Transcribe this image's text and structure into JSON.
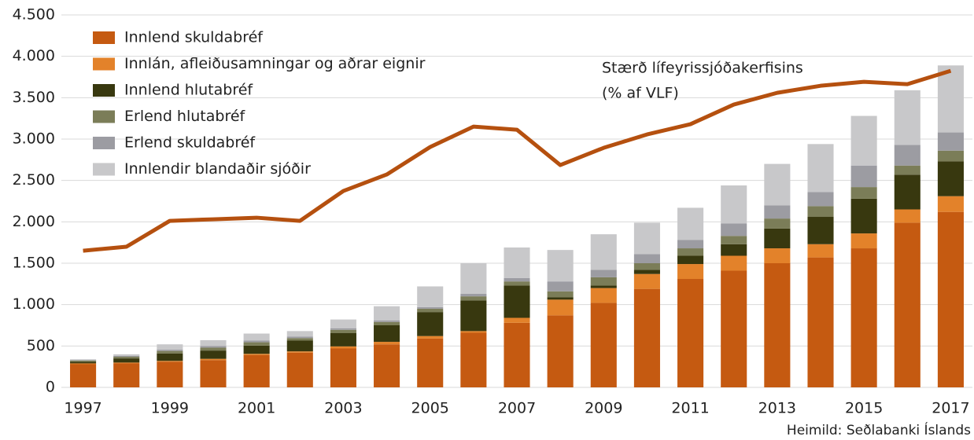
{
  "chart_data": {
    "type": "bar",
    "stacked": true,
    "categories": [
      "1997",
      null,
      "1999",
      null,
      "2001",
      null,
      "2003",
      null,
      "2005",
      null,
      "2007",
      null,
      "2009",
      null,
      "2011",
      null,
      "2013",
      null,
      "2015",
      null,
      "2017"
    ],
    "series": [
      {
        "name": "Innlend skuldabréf",
        "color": "#c55a11",
        "values": [
          280,
          290,
          310,
          330,
          390,
          420,
          470,
          520,
          590,
          660,
          780,
          870,
          1020,
          1190,
          1310,
          1410,
          1500,
          1570,
          1680,
          1990,
          2120
        ]
      },
      {
        "name": "Innlán, afleiðusamningar og aðrar eignir",
        "color": "#e3822a",
        "values": [
          10,
          10,
          10,
          15,
          15,
          15,
          25,
          30,
          30,
          20,
          60,
          190,
          180,
          180,
          180,
          180,
          180,
          160,
          180,
          160,
          190
        ]
      },
      {
        "name": "Innlend hlutabréf",
        "color": "#38380f",
        "values": [
          20,
          50,
          90,
          100,
          100,
          130,
          160,
          200,
          290,
          370,
          390,
          30,
          30,
          50,
          100,
          140,
          240,
          330,
          420,
          420,
          420
        ]
      },
      {
        "name": "Erlend hlutabréf",
        "color": "#7b7d58",
        "values": [
          15,
          20,
          30,
          35,
          40,
          30,
          40,
          40,
          40,
          50,
          50,
          70,
          100,
          80,
          90,
          100,
          120,
          130,
          140,
          110,
          130
        ]
      },
      {
        "name": "Erlend skuldabréf",
        "color": "#9c9ca2",
        "values": [
          5,
          10,
          15,
          20,
          20,
          20,
          20,
          20,
          20,
          30,
          40,
          120,
          90,
          110,
          100,
          150,
          160,
          170,
          260,
          250,
          220
        ]
      },
      {
        "name": "Innlendir blandaðir sjóðir",
        "color": "#c8c8ca",
        "values": [
          10,
          20,
          65,
          70,
          85,
          65,
          105,
          170,
          250,
          370,
          370,
          380,
          430,
          380,
          390,
          460,
          500,
          580,
          600,
          660,
          810
        ]
      },
      {
        "name": "Stærð lífeyrissjóðakerfisins",
        "type": "line",
        "color": "#b5500f",
        "values": [
          1651,
          1699,
          2012,
          2031,
          2050,
          2012,
          2373,
          2572,
          2904,
          3151,
          3113,
          2686,
          2894,
          3056,
          3180,
          3417,
          3559,
          3644,
          3692,
          3663,
          3825
        ]
      }
    ],
    "annotation": "(% af VLF)",
    "source": "Heimild: Seðlabanki Íslands",
    "ylim": [
      0,
      4500
    ],
    "yticks": [
      0,
      500,
      {
        "value": 1000,
        "label": "1.000"
      },
      {
        "value": 1500,
        "label": "1.500"
      },
      {
        "value": 2000,
        "label": "2.000"
      },
      {
        "value": 2500,
        "label": "2.500"
      },
      {
        "value": 3000,
        "label": "3.000"
      },
      {
        "value": 3500,
        "label": "3.500"
      },
      {
        "value": 4000,
        "label": "4.000"
      },
      {
        "value": 4500,
        "label": "4.500"
      }
    ],
    "grid": true,
    "legend": "upper-left"
  }
}
